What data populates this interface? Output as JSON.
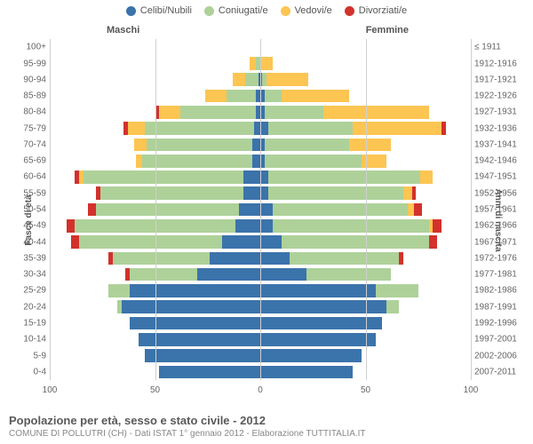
{
  "legend": [
    {
      "label": "Celibi/Nubili",
      "color": "#3b73ab"
    },
    {
      "label": "Coniugati/e",
      "color": "#aed199"
    },
    {
      "label": "Vedovi/e",
      "color": "#fdc552"
    },
    {
      "label": "Divorziati/e",
      "color": "#d3312c"
    }
  ],
  "headers": {
    "male": "Maschi",
    "female": "Femmine"
  },
  "yaxis_left_title": "Fasce di età",
  "yaxis_right_title": "Anni di nascita",
  "xaxis": {
    "max": 100,
    "ticks": [
      100,
      50,
      0,
      50,
      100
    ]
  },
  "title": "Popolazione per età, sesso e stato civile - 2012",
  "subtitle": "COMUNE DI POLLUTRI (CH) - Dati ISTAT 1° gennaio 2012 - Elaborazione TUTTITALIA.IT",
  "colors": {
    "celibi": "#3b73ab",
    "coniugati": "#aed199",
    "vedovi": "#fdc552",
    "divorziati": "#d3312c",
    "grid": "#cfcfcf",
    "center": "#9aa3b0"
  },
  "rows": [
    {
      "age": "0-4",
      "year": "2007-2011",
      "m": {
        "c": 48,
        "g": 0,
        "v": 0,
        "d": 0
      },
      "f": {
        "c": 44,
        "g": 0,
        "v": 0,
        "d": 0
      }
    },
    {
      "age": "5-9",
      "year": "2002-2006",
      "m": {
        "c": 55,
        "g": 0,
        "v": 0,
        "d": 0
      },
      "f": {
        "c": 48,
        "g": 0,
        "v": 0,
        "d": 0
      }
    },
    {
      "age": "10-14",
      "year": "1997-2001",
      "m": {
        "c": 58,
        "g": 0,
        "v": 0,
        "d": 0
      },
      "f": {
        "c": 55,
        "g": 0,
        "v": 0,
        "d": 0
      }
    },
    {
      "age": "15-19",
      "year": "1992-1996",
      "m": {
        "c": 62,
        "g": 0,
        "v": 0,
        "d": 0
      },
      "f": {
        "c": 58,
        "g": 0,
        "v": 0,
        "d": 0
      }
    },
    {
      "age": "20-24",
      "year": "1987-1991",
      "m": {
        "c": 66,
        "g": 2,
        "v": 0,
        "d": 0
      },
      "f": {
        "c": 60,
        "g": 6,
        "v": 0,
        "d": 0
      }
    },
    {
      "age": "25-29",
      "year": "1982-1986",
      "m": {
        "c": 62,
        "g": 10,
        "v": 0,
        "d": 0
      },
      "f": {
        "c": 55,
        "g": 20,
        "v": 0,
        "d": 0
      }
    },
    {
      "age": "30-34",
      "year": "1977-1981",
      "m": {
        "c": 30,
        "g": 32,
        "v": 0,
        "d": 2
      },
      "f": {
        "c": 22,
        "g": 40,
        "v": 0,
        "d": 0
      }
    },
    {
      "age": "35-39",
      "year": "1972-1976",
      "m": {
        "c": 24,
        "g": 46,
        "v": 0,
        "d": 2
      },
      "f": {
        "c": 14,
        "g": 52,
        "v": 0,
        "d": 2
      }
    },
    {
      "age": "40-44",
      "year": "1967-1971",
      "m": {
        "c": 18,
        "g": 68,
        "v": 0,
        "d": 4
      },
      "f": {
        "c": 10,
        "g": 70,
        "v": 0,
        "d": 4
      }
    },
    {
      "age": "45-49",
      "year": "1962-1966",
      "m": {
        "c": 12,
        "g": 76,
        "v": 0,
        "d": 4
      },
      "f": {
        "c": 6,
        "g": 74,
        "v": 2,
        "d": 4
      }
    },
    {
      "age": "50-54",
      "year": "1957-1961",
      "m": {
        "c": 10,
        "g": 68,
        "v": 0,
        "d": 4
      },
      "f": {
        "c": 6,
        "g": 64,
        "v": 3,
        "d": 4
      }
    },
    {
      "age": "55-59",
      "year": "1952-1956",
      "m": {
        "c": 8,
        "g": 68,
        "v": 0,
        "d": 2
      },
      "f": {
        "c": 4,
        "g": 64,
        "v": 4,
        "d": 2
      }
    },
    {
      "age": "60-64",
      "year": "1947-1951",
      "m": {
        "c": 8,
        "g": 76,
        "v": 2,
        "d": 2
      },
      "f": {
        "c": 4,
        "g": 72,
        "v": 6,
        "d": 0
      }
    },
    {
      "age": "65-69",
      "year": "1942-1946",
      "m": {
        "c": 4,
        "g": 52,
        "v": 3,
        "d": 0
      },
      "f": {
        "c": 2,
        "g": 46,
        "v": 12,
        "d": 0
      }
    },
    {
      "age": "70-74",
      "year": "1937-1941",
      "m": {
        "c": 4,
        "g": 50,
        "v": 6,
        "d": 0
      },
      "f": {
        "c": 2,
        "g": 40,
        "v": 20,
        "d": 0
      }
    },
    {
      "age": "75-79",
      "year": "1932-1936",
      "m": {
        "c": 3,
        "g": 52,
        "v": 8,
        "d": 2
      },
      "f": {
        "c": 4,
        "g": 40,
        "v": 42,
        "d": 2
      }
    },
    {
      "age": "80-84",
      "year": "1927-1931",
      "m": {
        "c": 2,
        "g": 36,
        "v": 10,
        "d": 2
      },
      "f": {
        "c": 2,
        "g": 28,
        "v": 50,
        "d": 0
      }
    },
    {
      "age": "85-89",
      "year": "1922-1926",
      "m": {
        "c": 2,
        "g": 14,
        "v": 10,
        "d": 0
      },
      "f": {
        "c": 2,
        "g": 8,
        "v": 32,
        "d": 0
      }
    },
    {
      "age": "90-94",
      "year": "1917-1921",
      "m": {
        "c": 1,
        "g": 6,
        "v": 6,
        "d": 0
      },
      "f": {
        "c": 1,
        "g": 2,
        "v": 20,
        "d": 0
      }
    },
    {
      "age": "95-99",
      "year": "1912-1916",
      "m": {
        "c": 0,
        "g": 2,
        "v": 3,
        "d": 0
      },
      "f": {
        "c": 0,
        "g": 0,
        "v": 6,
        "d": 0
      }
    },
    {
      "age": "100+",
      "year": "≤ 1911",
      "m": {
        "c": 0,
        "g": 0,
        "v": 0,
        "d": 0
      },
      "f": {
        "c": 0,
        "g": 0,
        "v": 0,
        "d": 0
      }
    }
  ],
  "style": {
    "label_fontsize": 10,
    "legend_fontsize": 11,
    "bar_height_pct": 80
  }
}
